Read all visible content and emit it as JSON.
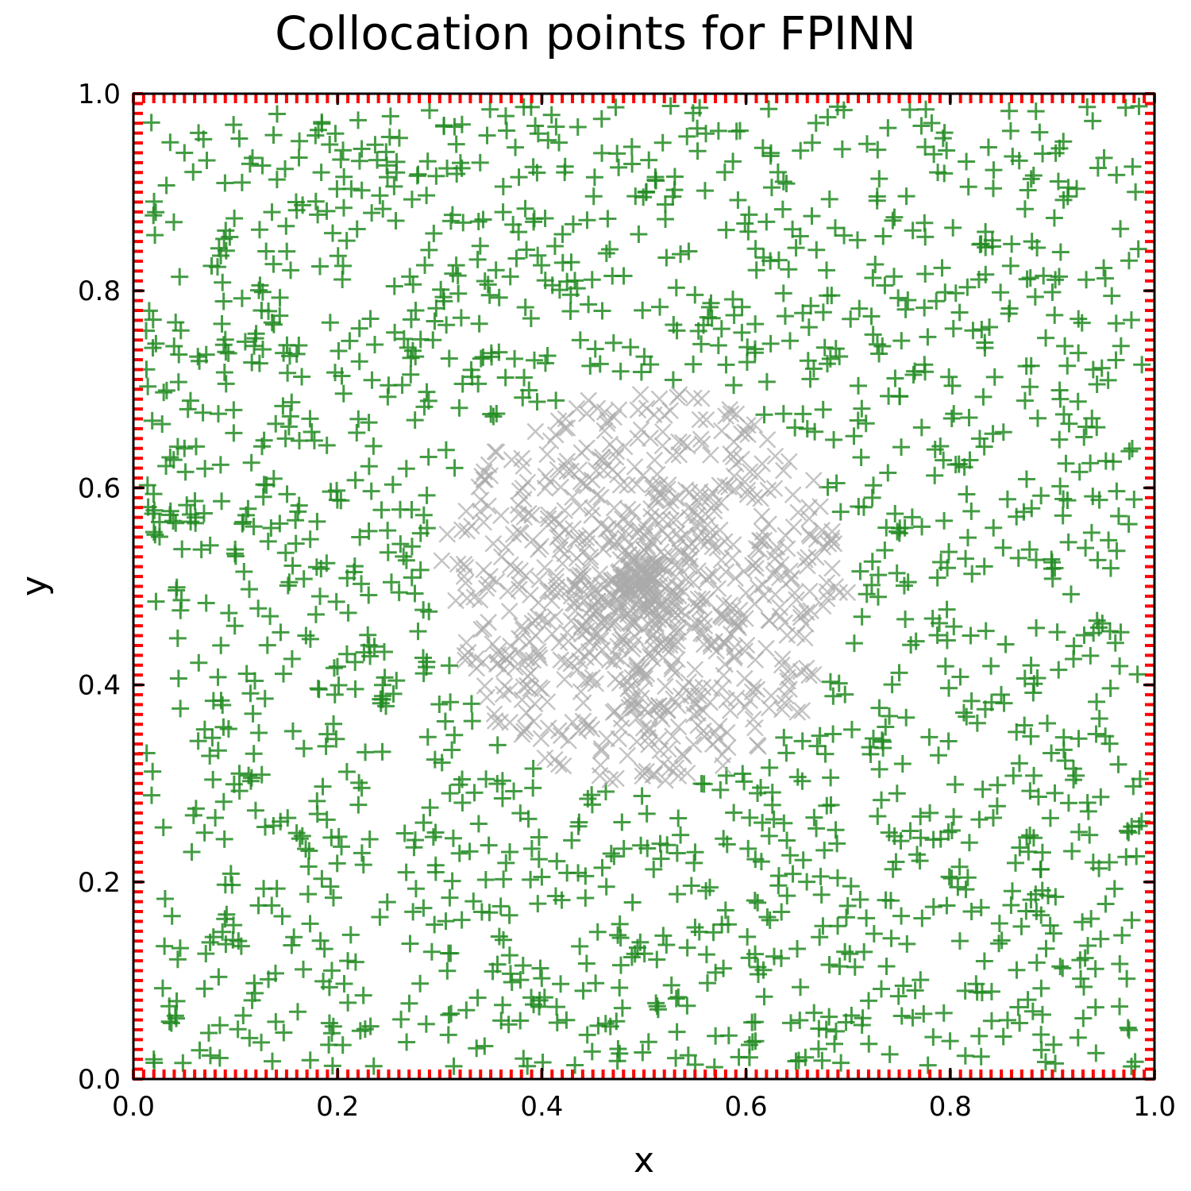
{
  "chart_data": {
    "type": "scatter",
    "title": "Collocation points for FPINN",
    "xlabel": "x",
    "ylabel": "y",
    "xlim": [
      0.0,
      1.0
    ],
    "ylim": [
      0.0,
      1.0
    ],
    "xticks": [
      "0.0",
      "0.2",
      "0.4",
      "0.6",
      "0.8",
      "1.0"
    ],
    "yticks": [
      "0.0",
      "0.2",
      "0.4",
      "0.6",
      "0.8",
      "1.0"
    ],
    "tick_direction": "in",
    "grid": false,
    "legend": "none",
    "series": [
      {
        "marker": "+",
        "color": "#228B22",
        "region": "unit square excluding disk centered (0.5, 0.5) radius 0.2",
        "approx_count": 1600,
        "sample_points": [
          [
            0.02,
            0.02
          ],
          [
            0.05,
            0.94
          ],
          [
            0.13,
            0.84
          ],
          [
            0.05,
            0.64
          ],
          [
            0.82,
            0.45
          ],
          [
            0.94,
            0.72
          ],
          [
            0.88,
            0.85
          ],
          [
            0.21,
            0.12
          ],
          [
            0.62,
            0.87
          ],
          [
            0.31,
            0.29
          ],
          [
            0.66,
            0.66
          ],
          [
            0.78,
            0.27
          ]
        ]
      },
      {
        "marker": "x",
        "color": "#a9a9a9",
        "region": "disk centered (0.5, 0.5) radius 0.2, denser toward center",
        "center": [
          0.5,
          0.5
        ],
        "radius": 0.2,
        "approx_count": 900
      },
      {
        "marker": "dash",
        "color": "#ff0000",
        "region": "boundary of the unit square",
        "approx_count_per_side": 100
      }
    ]
  }
}
